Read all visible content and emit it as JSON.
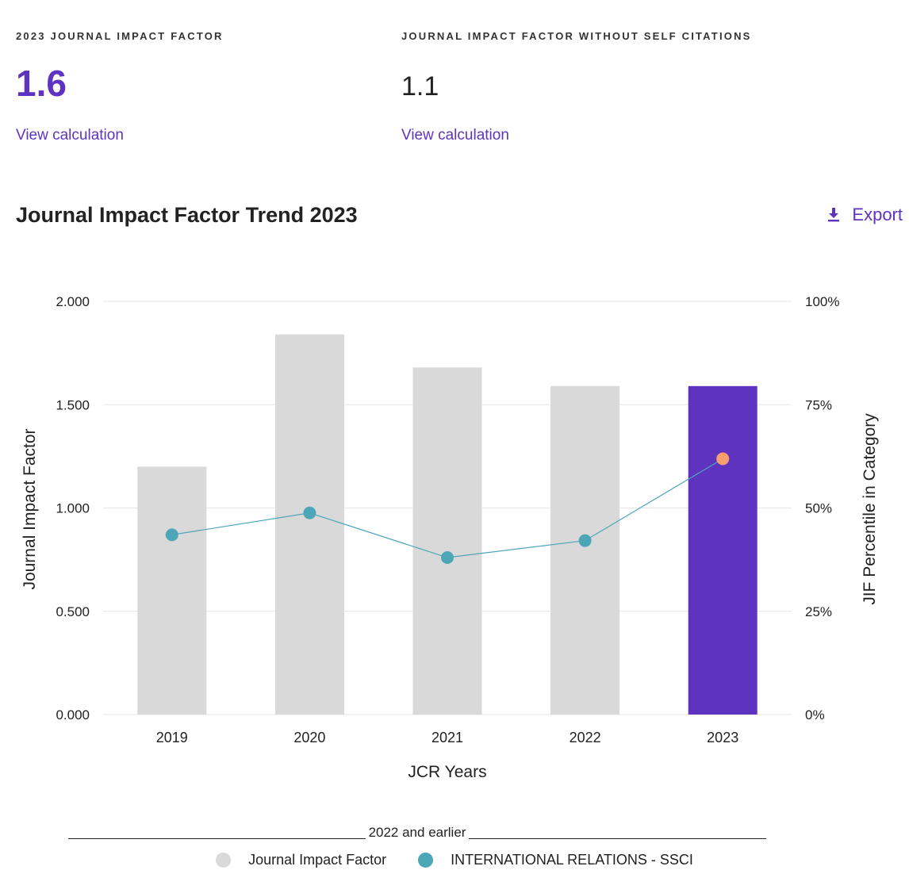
{
  "metrics": [
    {
      "label": "2023 JOURNAL IMPACT FACTOR",
      "value": "1.6",
      "link": "View calculation"
    },
    {
      "label": "JOURNAL IMPACT FACTOR WITHOUT SELF CITATIONS",
      "value": "1.1",
      "link": "View calculation"
    }
  ],
  "section": {
    "title": "Journal Impact Factor Trend 2023",
    "export_label": "Export",
    "export_icon": "download-icon"
  },
  "colors": {
    "accent": "#5e33bf",
    "bar": "#d9d9d9",
    "line": "#4da6b8",
    "highlight_point": "#f5a06c",
    "grid": "#e6e6e6"
  },
  "chart_data": {
    "type": "bar",
    "categories": [
      "2019",
      "2020",
      "2021",
      "2022",
      "2023"
    ],
    "series": [
      {
        "name": "Journal Impact Factor",
        "axis": "left",
        "values": [
          1.2,
          1.84,
          1.68,
          1.59,
          1.59
        ]
      },
      {
        "name": "INTERNATIONAL RELATIONS - SSCI",
        "axis": "right",
        "type": "line",
        "values": [
          43.5,
          48.8,
          38.0,
          42.1,
          61.9
        ]
      }
    ],
    "highlight_category": "2023",
    "xlabel": "JCR Years",
    "ylabel": "Journal Impact Factor",
    "y2label": "JIF Percentile in Category",
    "ylim": [
      0,
      2
    ],
    "y2lim": [
      0,
      100
    ],
    "yticks": [
      "2.000",
      "1.500",
      "1.000",
      "0.500",
      "0.000"
    ],
    "y2ticks": [
      "100%",
      "75%",
      "50%",
      "25%",
      "0%"
    ],
    "grid": true,
    "legend_title": "2022 and earlier",
    "legend_position": "bottom"
  }
}
